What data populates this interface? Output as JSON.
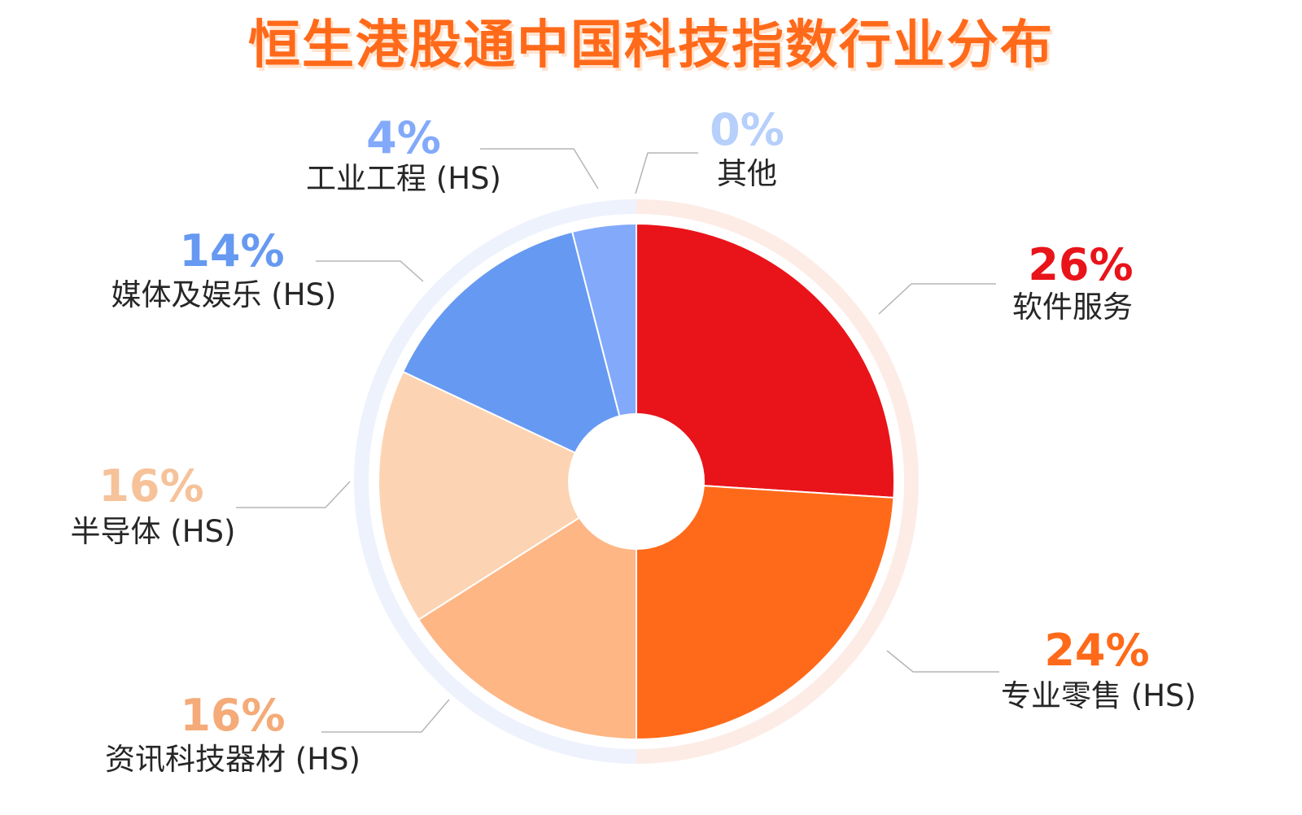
{
  "chart_data": {
    "type": "pie",
    "title": "恒生港股通中国科技指数行业分布",
    "slices": [
      {
        "name": "软件服务",
        "value": 26,
        "label": "26%",
        "color": "#e8141a",
        "label_color": "#e8141a"
      },
      {
        "name": "专业零售 (HS)",
        "value": 24,
        "label": "24%",
        "color": "#ff6a1a",
        "label_color": "#ff6a1a"
      },
      {
        "name": "资讯科技器材 (HS)",
        "value": 16,
        "label": "16%",
        "color": "#fdb684",
        "label_color": "#f4ab78"
      },
      {
        "name": "半导体 (HS)",
        "value": 16,
        "label": "16%",
        "color": "#fdd4b3",
        "label_color": "#f6c29a"
      },
      {
        "name": "媒体及娱乐 (HS)",
        "value": 14,
        "label": "14%",
        "color": "#6699f1",
        "label_color": "#6699f1"
      },
      {
        "name": "工业工程 (HS)",
        "value": 4,
        "label": "4%",
        "color": "#82a9fa",
        "label_color": "#82a9fa"
      },
      {
        "name": "其他",
        "value": 0,
        "label": "0%",
        "color": "#b6cffb",
        "label_color": "#b6cffb"
      }
    ],
    "legend": "none",
    "donut": true
  }
}
